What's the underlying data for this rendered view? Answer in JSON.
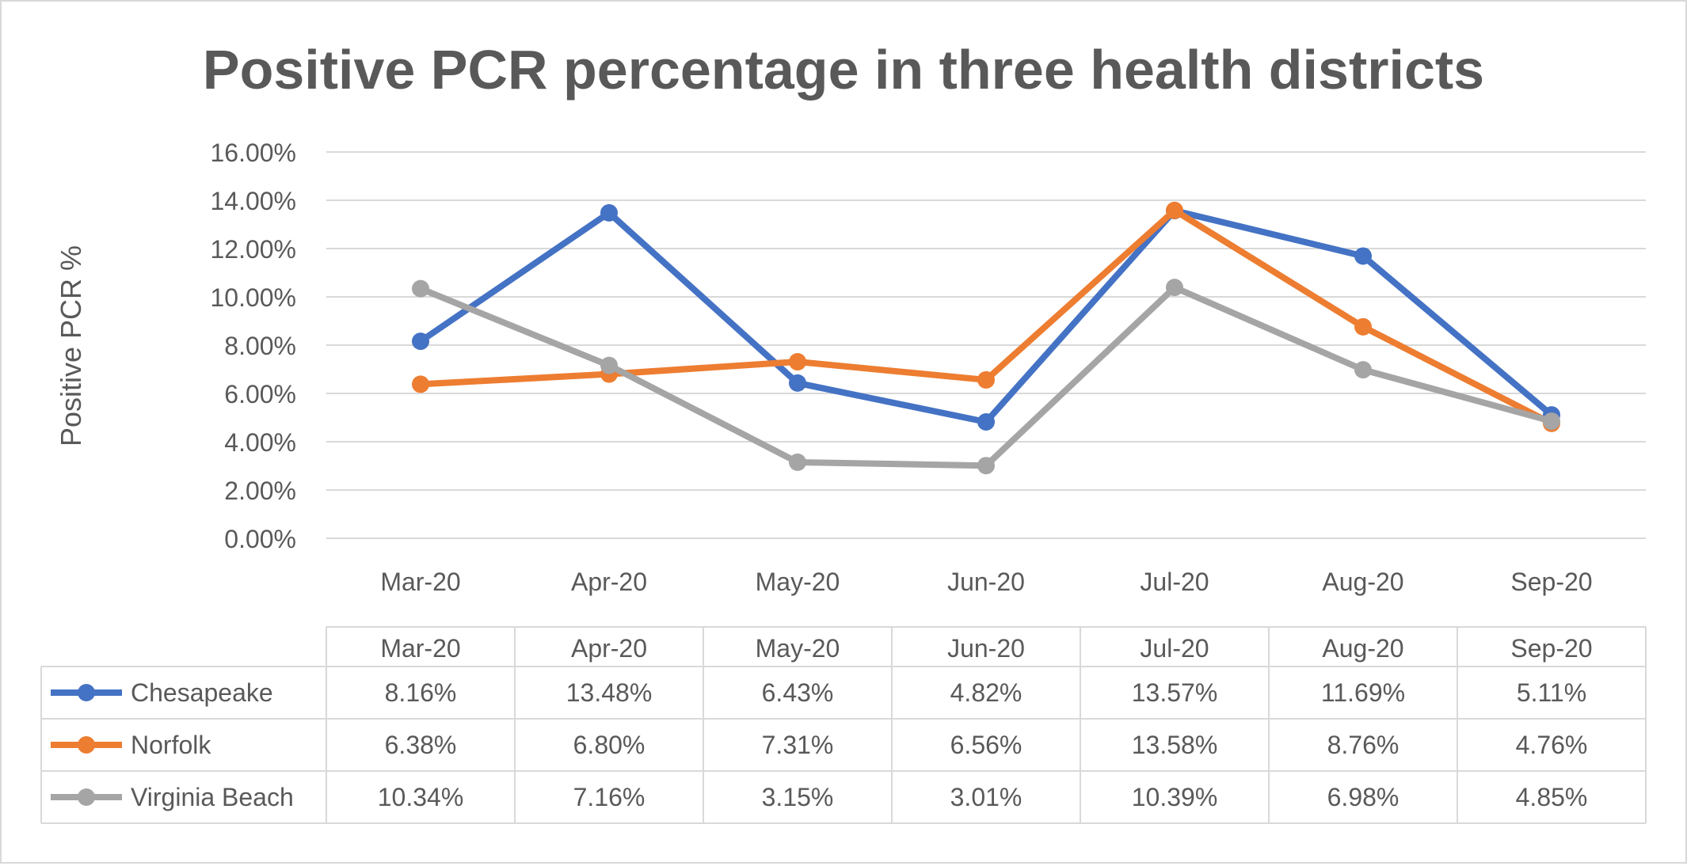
{
  "chart_data": {
    "type": "line",
    "title": "Positive PCR percentage in three health districts",
    "xlabel": "",
    "ylabel": "Positive PCR %",
    "ylim": [
      0,
      16
    ],
    "y_tick_values": [
      0,
      2,
      4,
      6,
      8,
      10,
      12,
      14,
      16
    ],
    "y_tick_labels": [
      "0.00%",
      "2.00%",
      "4.00%",
      "6.00%",
      "8.00%",
      "10.00%",
      "12.00%",
      "14.00%",
      "16.00%"
    ],
    "y_unit": "%",
    "grid": true,
    "legend": "data-table",
    "categories": [
      "Mar-20",
      "Apr-20",
      "May-20",
      "Jun-20",
      "Jul-20",
      "Aug-20",
      "Sep-20"
    ],
    "series": [
      {
        "name": "Chesapeake",
        "color": "#4472c4",
        "values": [
          8.16,
          13.48,
          6.43,
          4.82,
          13.57,
          11.69,
          5.11
        ],
        "labels": [
          "8.16%",
          "13.48%",
          "6.43%",
          "4.82%",
          "13.57%",
          "11.69%",
          "5.11%"
        ]
      },
      {
        "name": "Norfolk",
        "color": "#ed7d31",
        "values": [
          6.38,
          6.8,
          7.31,
          6.56,
          13.58,
          8.76,
          4.76
        ],
        "labels": [
          "6.38%",
          "6.80%",
          "7.31%",
          "6.56%",
          "13.58%",
          "8.76%",
          "4.76%"
        ]
      },
      {
        "name": "Virginia Beach",
        "color": "#a5a5a5",
        "values": [
          10.34,
          7.16,
          3.15,
          3.01,
          10.39,
          6.98,
          4.85
        ],
        "labels": [
          "10.34%",
          "7.16%",
          "3.15%",
          "3.01%",
          "10.39%",
          "6.98%",
          "4.85%"
        ]
      }
    ]
  }
}
